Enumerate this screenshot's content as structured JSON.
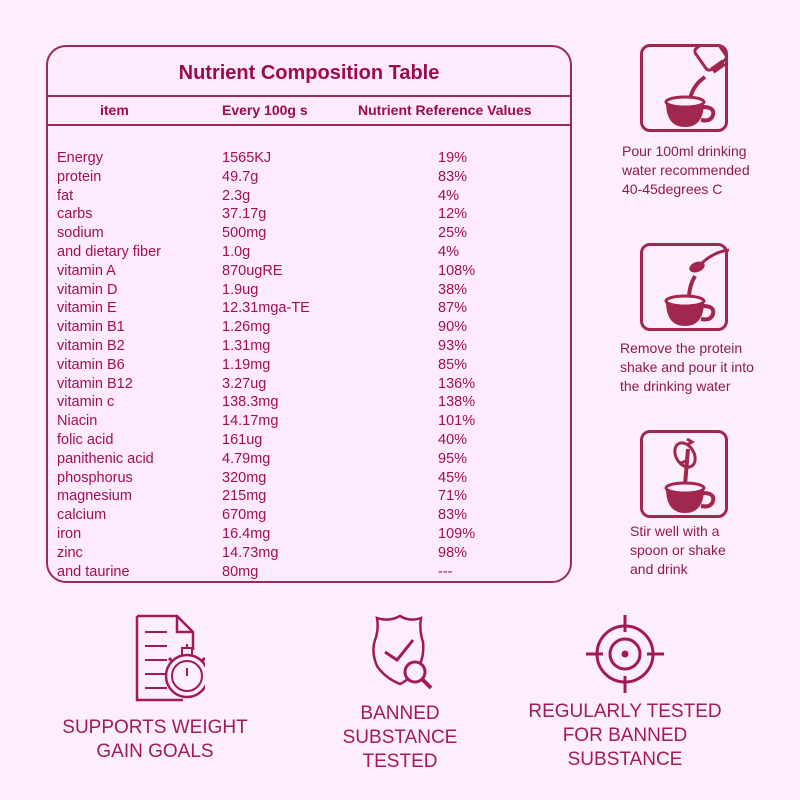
{
  "table": {
    "title": "Nutrient Composition Table",
    "columns": [
      "item",
      "Every 100g s",
      "Nutrient Reference Values"
    ],
    "rows": [
      {
        "item": "Energy",
        "per100g": "1565KJ",
        "nrv": "19%"
      },
      {
        "item": "protein",
        "per100g": "49.7g",
        "nrv": "83%"
      },
      {
        "item": "fat",
        "per100g": "2.3g",
        "nrv": "4%"
      },
      {
        "item": "carbs",
        "per100g": "37.17g",
        "nrv": "12%"
      },
      {
        "item": "sodium",
        "per100g": "500mg",
        "nrv": "25%"
      },
      {
        "item": "and dietary fiber",
        "per100g": "1.0g",
        "nrv": "4%"
      },
      {
        "item": "vitamin A",
        "per100g": "870ugRE",
        "nrv": "108%"
      },
      {
        "item": "vitamin D",
        "per100g": "1.9ug",
        "nrv": "38%"
      },
      {
        "item": "vitamin E",
        "per100g": "12.31mga-TE",
        "nrv": "87%"
      },
      {
        "item": "vitamin B1",
        "per100g": "1.26mg",
        "nrv": "90%"
      },
      {
        "item": "vitamin B2",
        "per100g": "1.31mg",
        "nrv": "93%"
      },
      {
        "item": "vitamin B6",
        "per100g": "1.19mg",
        "nrv": "85%"
      },
      {
        "item": "vitamin B12",
        "per100g": "3.27ug",
        "nrv": "136%"
      },
      {
        "item": "vitamin c",
        "per100g": "138.3mg",
        "nrv": "138%"
      },
      {
        "item": "Niacin",
        "per100g": "14.17mg",
        "nrv": "101%"
      },
      {
        "item": "folic acid",
        "per100g": "161ug",
        "nrv": "40%"
      },
      {
        "item": "panithenic acid",
        "per100g": "4.79mg",
        "nrv": "95%"
      },
      {
        "item": "phosphorus",
        "per100g": "320mg",
        "nrv": "45%"
      },
      {
        "item": "magnesium",
        "per100g": "215mg",
        "nrv": "71%"
      },
      {
        "item": "calcium",
        "per100g": "670mg",
        "nrv": "83%"
      },
      {
        "item": "iron",
        "per100g": "16.4mg",
        "nrv": "109%"
      },
      {
        "item": "zinc",
        "per100g": "14.73mg",
        "nrv": "98%"
      },
      {
        "item": "and taurine",
        "per100g": "80mg",
        "nrv": "---"
      }
    ]
  },
  "steps": [
    {
      "icon": "pour-water-cup-icon",
      "lines": [
        "Pour 100ml drinking",
        "water recommended",
        "40-45degrees C"
      ]
    },
    {
      "icon": "spoon-powder-cup-icon",
      "lines": [
        "Remove the protein",
        "shake and pour it into",
        "the drinking water"
      ]
    },
    {
      "icon": "stir-cup-icon",
      "lines": [
        "Stir well with a",
        "spoon or shake",
        "and drink"
      ]
    }
  ],
  "features": [
    {
      "icon": "document-stopwatch-icon",
      "label": "SUPPORTS WEIGHT\nGAIN GOALS"
    },
    {
      "icon": "shield-check-search-icon",
      "label": "BANNED\nSUBSTANCE\nTESTED"
    },
    {
      "icon": "crosshair-target-icon",
      "label": "REGULARLY TESTED\nFOR BANNED\nSUBSTANCE"
    }
  ],
  "colors": {
    "background": "#fdeefd",
    "accent": "#9b0a4d",
    "icon_fill": "#a1274f",
    "border": "#9b2a5a"
  }
}
